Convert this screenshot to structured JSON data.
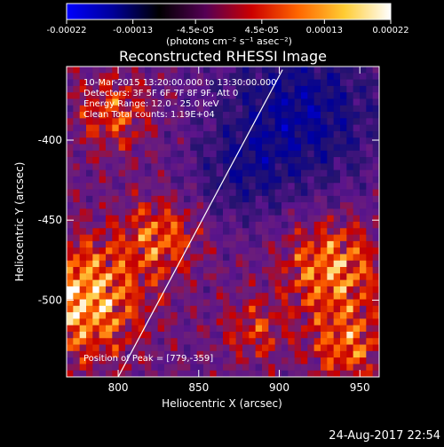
{
  "colorbar": {
    "ticks": [
      "-0.00022",
      "-0.00013",
      "-4.5e-05",
      "4.5e-05",
      "0.00013",
      "0.00022"
    ],
    "tick_values": [
      -0.00022,
      -0.00013,
      -4.5e-05,
      4.5e-05,
      0.00013,
      0.00022
    ],
    "units": "(photons cm⁻² s⁻¹ asec⁻²)",
    "stops": [
      "#0000ff",
      "#000099",
      "#000000",
      "#550055",
      "#cc0000",
      "#ff6600",
      "#ffcc33",
      "#ffffff"
    ]
  },
  "chart_data": {
    "type": "heatmap",
    "title": "Reconstructed RHESSI Image",
    "xlabel": "Heliocentric X (arcsec)",
    "ylabel": "Heliocentric Y (arcsec)",
    "xlim": [
      768,
      962
    ],
    "ylim": [
      -548,
      -354
    ],
    "xticks": [
      800,
      850,
      900,
      950
    ],
    "yticks": [
      -400,
      -450,
      -500
    ],
    "xtick_labels": [
      "800",
      "850",
      "900",
      "950"
    ],
    "ytick_labels": [
      "-400",
      "-450",
      "-500"
    ],
    "annotations": [
      "10-Mar-2015 13:20:00.000 to 13:30:00.000",
      "Detectors: 3F 5F 6F 7F 8F 9F, Att 0",
      "Energy Range: 12.0 - 25.0 keV",
      "Clean    Total counts: 1.19E+04"
    ],
    "peak_label": "Position of Peak = [779,-359]",
    "limb_line": [
      [
        800,
        -548
      ],
      [
        902,
        -356
      ]
    ]
  },
  "timestamp": "24-Aug-2017 22:54"
}
